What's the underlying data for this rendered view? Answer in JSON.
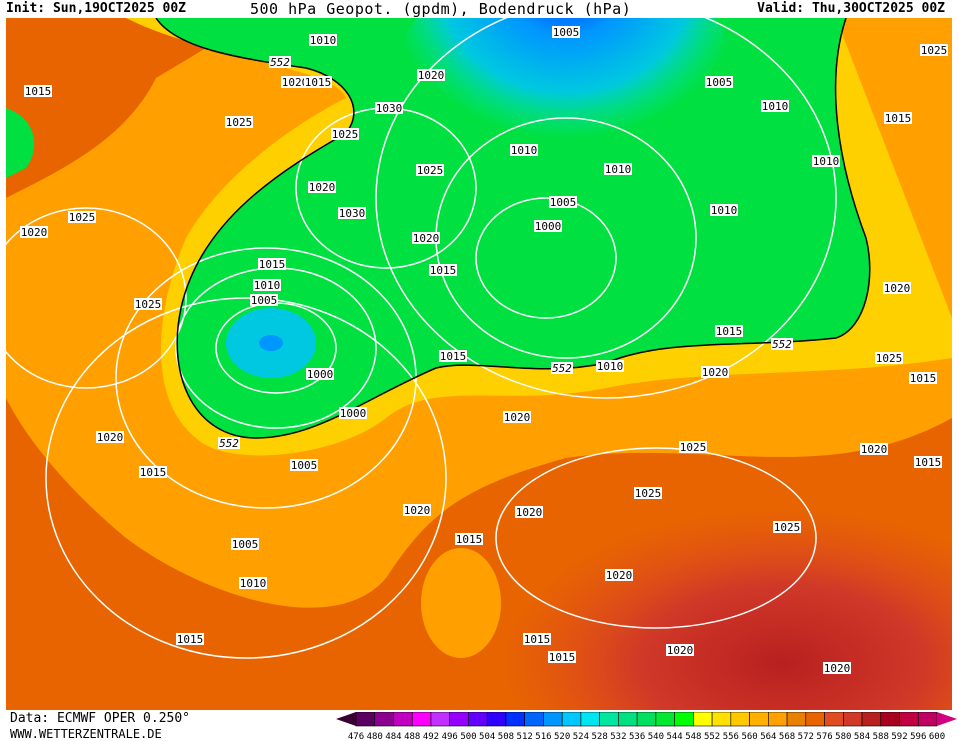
{
  "header": {
    "init": "Init: Sun,19OCT2025 00Z",
    "title": "500 hPa Geopot. (gpdm), Bodendruck (hPa)",
    "valid": "Valid: Thu,30OCT2025 00Z"
  },
  "footer": {
    "source": "Data: ECMWF OPER 0.250°",
    "site": "WWW.WETTERZENTRALE.DE"
  },
  "colorbar": {
    "ticks": [
      476,
      480,
      484,
      488,
      492,
      496,
      500,
      504,
      508,
      512,
      516,
      520,
      524,
      528,
      532,
      536,
      540,
      544,
      548,
      552,
      556,
      560,
      564,
      568,
      572,
      576,
      580,
      584,
      588,
      592,
      596,
      600
    ],
    "colors": [
      "#5a0060",
      "#8c0090",
      "#c000c0",
      "#ff00ff",
      "#c030ff",
      "#9600ff",
      "#6400ff",
      "#3000ff",
      "#0030ff",
      "#0064ff",
      "#0096ff",
      "#00c8ff",
      "#00e6f0",
      "#00e6a0",
      "#00e080",
      "#00e060",
      "#00e830",
      "#00ff00",
      "#ffff00",
      "#ffe000",
      "#ffc800",
      "#ffb000",
      "#ffa000",
      "#e88000",
      "#e86400",
      "#e04c20",
      "#d03828",
      "#b82020",
      "#a80020",
      "#c00040",
      "#c00060"
    ],
    "under_color": "#3a0030",
    "over_color": "#d00080"
  },
  "isobar_labels": [
    "1010",
    "552",
    "1020",
    "1015",
    "1020",
    "1005",
    "1025",
    "1015",
    "1005",
    "1010",
    "1030",
    "1025",
    "1025",
    "1015",
    "1010",
    "1010",
    "1025",
    "1010",
    "1020",
    "1005",
    "1025",
    "1030",
    "1010",
    "1020",
    "1000",
    "1020",
    "1015",
    "1015",
    "1010",
    "1005",
    "1025",
    "1020",
    "1015",
    "552",
    "1015",
    "552",
    "1010",
    "1025",
    "1000",
    "1020",
    "1015",
    "1000",
    "1020",
    "1020",
    "552",
    "1025",
    "1020",
    "1005",
    "1015",
    "1015",
    "1025",
    "1020",
    "1020",
    "1025",
    "1015",
    "1005",
    "1020",
    "1010",
    "1015",
    "1015",
    "1015",
    "1020",
    "1020"
  ]
}
